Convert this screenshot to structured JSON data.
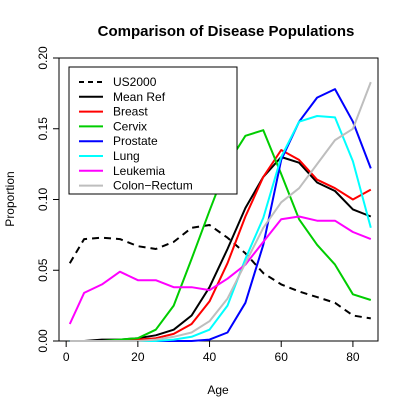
{
  "chart_data": {
    "type": "line",
    "title": "Comparison of Disease Populations",
    "xlabel": "Age",
    "ylabel": "Proportion",
    "xlim": [
      -2,
      87
    ],
    "ylim": [
      0,
      0.2
    ],
    "xticks": [
      0,
      20,
      40,
      60,
      80
    ],
    "yticks": [
      0.0,
      0.05,
      0.1,
      0.15,
      0.2
    ],
    "ytick_labels": [
      "0.00",
      "0.05",
      "0.10",
      "0.15",
      "0.20"
    ],
    "grid": false,
    "legend_position": "top-left",
    "x": [
      1,
      5,
      10,
      15,
      20,
      25,
      30,
      35,
      40,
      45,
      50,
      55,
      60,
      65,
      70,
      75,
      80,
      85
    ],
    "series": [
      {
        "name": "US2000",
        "color": "#000000",
        "dash": "dashed",
        "width": 2,
        "values": [
          0.055,
          0.072,
          0.073,
          0.072,
          0.067,
          0.065,
          0.07,
          0.08,
          0.082,
          0.073,
          0.062,
          0.048,
          0.04,
          0.035,
          0.031,
          0.027,
          0.018,
          0.016
        ]
      },
      {
        "name": "Mean Ref",
        "color": "#000000",
        "dash": "solid",
        "width": 2,
        "values": [
          0.0,
          0.0,
          0.001,
          0.001,
          0.002,
          0.004,
          0.008,
          0.018,
          0.038,
          0.065,
          0.094,
          0.116,
          0.13,
          0.126,
          0.112,
          0.106,
          0.093,
          0.088
        ]
      },
      {
        "name": "Breast",
        "color": "#ff0000",
        "dash": "solid",
        "width": 2,
        "values": [
          0.0,
          0.0,
          0.0,
          0.0,
          0.001,
          0.002,
          0.005,
          0.012,
          0.028,
          0.055,
          0.088,
          0.116,
          0.135,
          0.128,
          0.114,
          0.108,
          0.1,
          0.107
        ]
      },
      {
        "name": "Cervix",
        "color": "#00cd00",
        "dash": "solid",
        "width": 2,
        "values": [
          0.0,
          0.0,
          0.0,
          0.001,
          0.002,
          0.008,
          0.025,
          0.058,
          0.092,
          0.125,
          0.145,
          0.149,
          0.118,
          0.086,
          0.068,
          0.054,
          0.033,
          0.029
        ]
      },
      {
        "name": "Prostate",
        "color": "#0000ff",
        "dash": "solid",
        "width": 2,
        "values": [
          0.0,
          0.0,
          0.0,
          0.0,
          0.0,
          0.0,
          0.0,
          0.0,
          0.001,
          0.006,
          0.027,
          0.068,
          0.128,
          0.155,
          0.172,
          0.178,
          0.155,
          0.122
        ]
      },
      {
        "name": "Lung",
        "color": "#00ffff",
        "dash": "solid",
        "width": 2,
        "values": [
          0.0,
          0.0,
          0.0,
          0.0,
          0.0,
          0.0,
          0.001,
          0.003,
          0.008,
          0.025,
          0.058,
          0.087,
          0.13,
          0.155,
          0.159,
          0.158,
          0.127,
          0.08
        ]
      },
      {
        "name": "Leukemia",
        "color": "#ff00ff",
        "dash": "solid",
        "width": 2,
        "values": [
          0.012,
          0.034,
          0.04,
          0.049,
          0.043,
          0.043,
          0.038,
          0.038,
          0.036,
          0.044,
          0.054,
          0.07,
          0.086,
          0.088,
          0.085,
          0.085,
          0.077,
          0.072
        ]
      },
      {
        "name": "Colon−Rectum",
        "color": "#bebebe",
        "dash": "solid",
        "width": 2,
        "values": [
          0.0,
          0.0,
          0.0,
          0.0,
          0.0,
          0.001,
          0.003,
          0.006,
          0.014,
          0.03,
          0.055,
          0.08,
          0.098,
          0.108,
          0.125,
          0.142,
          0.15,
          0.183
        ]
      }
    ]
  }
}
